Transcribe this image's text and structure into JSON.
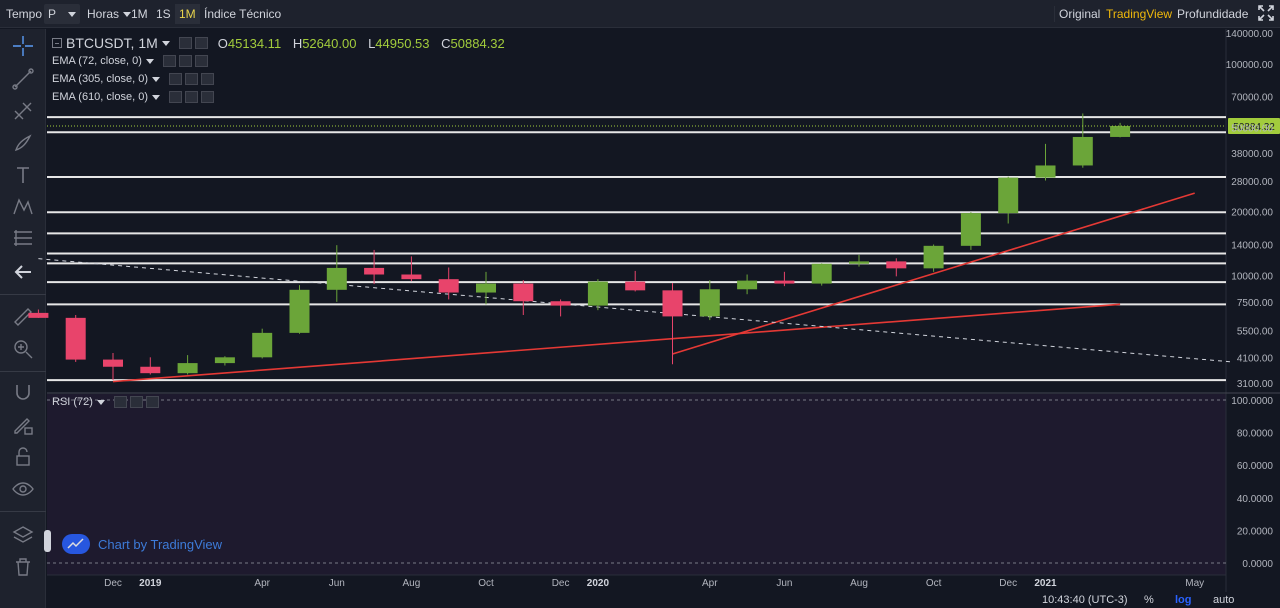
{
  "toolbar": {
    "tempo_label": "Tempo",
    "tempo_value": "P",
    "horas_label": "Horas",
    "intervals": [
      "1M",
      "1S",
      "1M"
    ],
    "active_interval_index": 2,
    "indicators_label": "Índice Técnico",
    "views": [
      "Original",
      "TradingView",
      "Profundidade"
    ],
    "active_view_index": 1,
    "fullscreen_icon": "fullscreen-icon"
  },
  "sidebar_icons": [
    "crosshair-icon",
    "trend-line-icon",
    "pitchfork-icon",
    "brush-icon",
    "text-icon",
    "pattern-icon",
    "fib-icon",
    "back-arrow-icon",
    "ruler-icon",
    "zoom-in-icon",
    "magnet-icon",
    "pencil-lock-icon",
    "lock-icon",
    "eye-icon",
    "layers-icon",
    "trash-icon"
  ],
  "legend": {
    "symbol": "BTCUSDT, 1M",
    "ohlc": [
      {
        "key": "O",
        "value": "45134.11"
      },
      {
        "key": "H",
        "value": "52640.00"
      },
      {
        "key": "L",
        "value": "44950.53"
      },
      {
        "key": "C",
        "value": "50884.32"
      }
    ],
    "indicators": [
      "EMA (72, close, 0)",
      "EMA (305, close, 0)",
      "EMA (610, close, 0)"
    ]
  },
  "rsi": {
    "label": "RSI (72)"
  },
  "watermark": "Chart by TradingView",
  "bottom": {
    "time": "10:43:40 (UTC-3)",
    "percent": "%",
    "log": "log",
    "auto": "auto"
  },
  "colors": {
    "background": "#131722",
    "up": "#6ba539",
    "down": "#e8446b",
    "last_price": "#a2cc3c",
    "trend_line": "#e53935",
    "rsi_bg": "#1e1a2e"
  },
  "chart_data": [
    {
      "type": "candlestick",
      "symbol": "BTCUSDT",
      "interval": "1M",
      "scale": "log",
      "ylim": [
        3000,
        150000
      ],
      "y_ticks": [
        140000,
        100000,
        70000,
        50000,
        38000,
        28000,
        20000,
        14000,
        10000,
        7500,
        5500,
        4100,
        3100
      ],
      "y_tick_labels": [
        "140000.00",
        "100000.00",
        "70000.00",
        "50000.00",
        "38000.00",
        "28000.00",
        "20000.00",
        "14000.00",
        "10000.00",
        "7500.00",
        "5500.00",
        "4100.00",
        "3100.00"
      ],
      "x_tick_labels": [
        "Dec",
        "2019",
        "Apr",
        "Jun",
        "Aug",
        "Oct",
        "Dec",
        "2020",
        "Apr",
        "Jun",
        "Aug",
        "Oct",
        "Dec",
        "2021",
        "May"
      ],
      "last_price_label": "50884.32",
      "candles": [
        {
          "t": "2018-10",
          "o": 6650,
          "h": 6900,
          "l": 6300,
          "c": 6300
        },
        {
          "t": "2018-11",
          "o": 6300,
          "h": 6500,
          "l": 3900,
          "c": 4000
        },
        {
          "t": "2018-12",
          "o": 4000,
          "h": 4300,
          "l": 3200,
          "c": 3700
        },
        {
          "t": "2019-01",
          "o": 3700,
          "h": 4100,
          "l": 3400,
          "c": 3450
        },
        {
          "t": "2019-02",
          "o": 3450,
          "h": 4200,
          "l": 3400,
          "c": 3850
        },
        {
          "t": "2019-03",
          "o": 3850,
          "h": 4150,
          "l": 3750,
          "c": 4100
        },
        {
          "t": "2019-04",
          "o": 4100,
          "h": 5600,
          "l": 4050,
          "c": 5350
        },
        {
          "t": "2019-05",
          "o": 5350,
          "h": 9000,
          "l": 5300,
          "c": 8550
        },
        {
          "t": "2019-06",
          "o": 8550,
          "h": 13900,
          "l": 7500,
          "c": 10850
        },
        {
          "t": "2019-07",
          "o": 10850,
          "h": 13200,
          "l": 9100,
          "c": 10100
        },
        {
          "t": "2019-08",
          "o": 10100,
          "h": 12300,
          "l": 9400,
          "c": 9600
        },
        {
          "t": "2019-09",
          "o": 9600,
          "h": 10900,
          "l": 7700,
          "c": 8300
        },
        {
          "t": "2019-10",
          "o": 8300,
          "h": 10400,
          "l": 7300,
          "c": 9150
        },
        {
          "t": "2019-11",
          "o": 9150,
          "h": 9500,
          "l": 6500,
          "c": 7550
        },
        {
          "t": "2019-12",
          "o": 7550,
          "h": 7700,
          "l": 6400,
          "c": 7200
        },
        {
          "t": "2020-01",
          "o": 7200,
          "h": 9600,
          "l": 6850,
          "c": 9350
        },
        {
          "t": "2020-02",
          "o": 9350,
          "h": 10500,
          "l": 8400,
          "c": 8500
        },
        {
          "t": "2020-03",
          "o": 8500,
          "h": 9200,
          "l": 3800,
          "c": 6400
        },
        {
          "t": "2020-04",
          "o": 6400,
          "h": 9500,
          "l": 6150,
          "c": 8600
        },
        {
          "t": "2020-05",
          "o": 8600,
          "h": 10100,
          "l": 8150,
          "c": 9450
        },
        {
          "t": "2020-06",
          "o": 9450,
          "h": 10400,
          "l": 8900,
          "c": 9150
        },
        {
          "t": "2020-07",
          "o": 9150,
          "h": 11400,
          "l": 8950,
          "c": 11350
        },
        {
          "t": "2020-08",
          "o": 11350,
          "h": 12500,
          "l": 11000,
          "c": 11650
        },
        {
          "t": "2020-09",
          "o": 11650,
          "h": 12050,
          "l": 9900,
          "c": 10800
        },
        {
          "t": "2020-10",
          "o": 10800,
          "h": 14000,
          "l": 10400,
          "c": 13800
        },
        {
          "t": "2020-11",
          "o": 13800,
          "h": 19900,
          "l": 13200,
          "c": 19700
        },
        {
          "t": "2020-12",
          "o": 19700,
          "h": 29300,
          "l": 17600,
          "c": 29000
        },
        {
          "t": "2021-01",
          "o": 29000,
          "h": 41900,
          "l": 28100,
          "c": 33100
        },
        {
          "t": "2021-02",
          "o": 33100,
          "h": 58300,
          "l": 32300,
          "c": 45150
        },
        {
          "t": "2021-03",
          "o": 45150,
          "h": 52640,
          "l": 44950,
          "c": 50884
        }
      ],
      "horizontal_levels": [
        56000,
        47500,
        29200,
        19900,
        15800,
        12700,
        11400,
        9300,
        7300,
        3200
      ],
      "trend_lines": [
        {
          "style": "solid",
          "color": "#e53935",
          "from": {
            "t": "2018-12",
            "v": 3150
          },
          "to": {
            "t": "2021-03",
            "v": 7300
          }
        },
        {
          "style": "solid",
          "color": "#e53935",
          "from": {
            "t": "2020-03",
            "v": 4250
          },
          "to": {
            "t": "2021-05",
            "v": 24500
          }
        },
        {
          "style": "dashed",
          "color": "#d1d4dc",
          "from": {
            "t": "2018-10",
            "v": 12000
          },
          "to": {
            "t": "2021-06",
            "v": 3900
          }
        }
      ]
    },
    {
      "type": "line",
      "name": "RSI (72)",
      "ylim": [
        0,
        100
      ],
      "y_ticks": [
        0,
        20,
        40,
        60,
        80,
        100
      ],
      "y_tick_labels": [
        "0.0000",
        "20.0000",
        "40.0000",
        "60.0000",
        "80.0000",
        "100.0000"
      ],
      "series": []
    }
  ]
}
